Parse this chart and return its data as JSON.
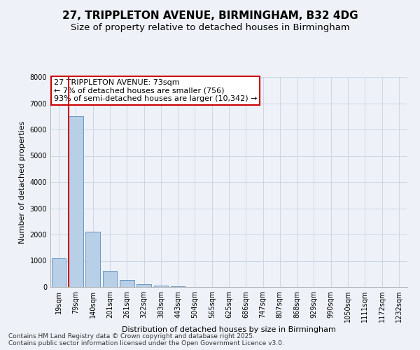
{
  "title_line1": "27, TRIPPLETON AVENUE, BIRMINGHAM, B32 4DG",
  "title_line2": "Size of property relative to detached houses in Birmingham",
  "xlabel": "Distribution of detached houses by size in Birmingham",
  "ylabel": "Number of detached properties",
  "categories": [
    "19sqm",
    "79sqm",
    "140sqm",
    "201sqm",
    "261sqm",
    "322sqm",
    "383sqm",
    "443sqm",
    "504sqm",
    "565sqm",
    "625sqm",
    "686sqm",
    "747sqm",
    "807sqm",
    "868sqm",
    "929sqm",
    "990sqm",
    "1050sqm",
    "1111sqm",
    "1172sqm",
    "1232sqm"
  ],
  "values": [
    1100,
    6500,
    2100,
    620,
    270,
    110,
    50,
    18,
    10,
    4,
    2,
    0,
    0,
    0,
    0,
    0,
    0,
    0,
    0,
    0,
    0
  ],
  "bar_color": "#b8cfe8",
  "bar_edge_color": "#5b8db8",
  "vline_color": "#cc0000",
  "annotation_text": "27 TRIPPLETON AVENUE: 73sqm\n← 7% of detached houses are smaller (756)\n93% of semi-detached houses are larger (10,342) →",
  "annotation_box_color": "#ffffff",
  "annotation_box_edge_color": "#cc0000",
  "ylim": [
    0,
    8000
  ],
  "yticks": [
    0,
    1000,
    2000,
    3000,
    4000,
    5000,
    6000,
    7000,
    8000
  ],
  "bg_color": "#eef2f8",
  "plot_bg_color": "#eef2f8",
  "footer_text": "Contains HM Land Registry data © Crown copyright and database right 2025.\nContains public sector information licensed under the Open Government Licence v3.0.",
  "title_fontsize": 11,
  "subtitle_fontsize": 9.5,
  "axis_label_fontsize": 8,
  "tick_fontsize": 7,
  "annotation_fontsize": 8,
  "footer_fontsize": 6.5
}
